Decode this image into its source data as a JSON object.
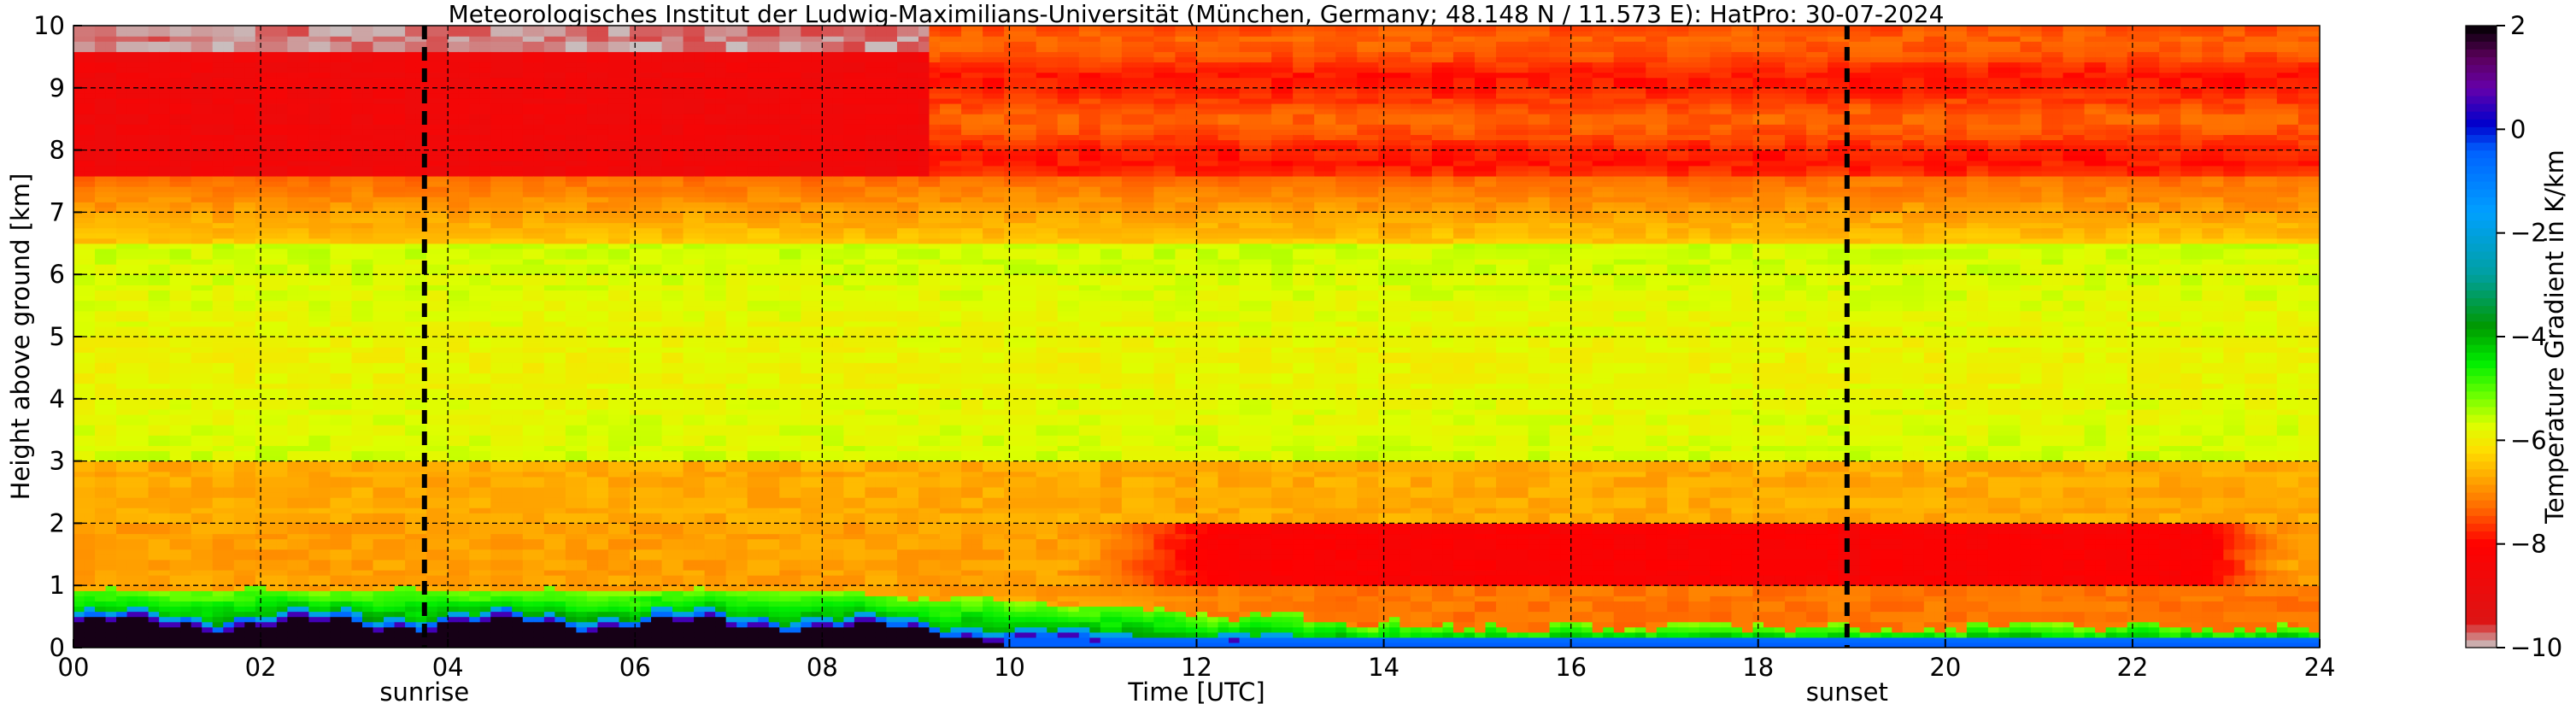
{
  "chart_data": {
    "type": "heatmap",
    "title": "Meteorologisches Institut der Ludwig-Maximilians-Universität (München, Germany; 48.148 N / 11.573 E):    HatPro: 30-07-2024",
    "xlabel": "Time [UTC]",
    "ylabel": "Height above ground [km]",
    "xlim": [
      0,
      24
    ],
    "ylim": [
      0,
      10
    ],
    "x_ticks": [
      0,
      2,
      4,
      6,
      8,
      10,
      12,
      14,
      16,
      18,
      20,
      22,
      24
    ],
    "x_tick_labels": [
      "00",
      "02",
      "04",
      "06",
      "08",
      "10",
      "12",
      "14",
      "16",
      "18",
      "20",
      "22",
      "24"
    ],
    "y_ticks": [
      0,
      1,
      2,
      3,
      4,
      5,
      6,
      7,
      8,
      9,
      10
    ],
    "y_tick_labels": [
      "0",
      "1",
      "2",
      "3",
      "4",
      "5",
      "6",
      "7",
      "8",
      "9",
      "10"
    ],
    "grid": true,
    "colorbar": {
      "label": "Temperature Gradient in K/km",
      "range": [
        -10,
        2
      ],
      "ticks": [
        2,
        0,
        -2,
        -4,
        -6,
        -8,
        -10
      ],
      "tick_labels": [
        "2",
        "0",
        "−2",
        "−4",
        "−6",
        "−8",
        "−10"
      ],
      "stops": [
        {
          "v": -10,
          "c": "#c8c8c8"
        },
        {
          "v": -9.5,
          "c": "#dc1414"
        },
        {
          "v": -8,
          "c": "#ff0000"
        },
        {
          "v": -7.3,
          "c": "#ff6a00"
        },
        {
          "v": -6.7,
          "c": "#ffaa00"
        },
        {
          "v": -6.2,
          "c": "#ffdd00"
        },
        {
          "v": -5.7,
          "c": "#ddff00"
        },
        {
          "v": -5.1,
          "c": "#66ff00"
        },
        {
          "v": -4.5,
          "c": "#00ee00"
        },
        {
          "v": -3.8,
          "c": "#009900"
        },
        {
          "v": -2.8,
          "c": "#00a0a0"
        },
        {
          "v": -1.6,
          "c": "#00a0ff"
        },
        {
          "v": -0.4,
          "c": "#0060ff"
        },
        {
          "v": 0.1,
          "c": "#0000cc"
        },
        {
          "v": 0.8,
          "c": "#6600aa"
        },
        {
          "v": 1.4,
          "c": "#5a005a"
        },
        {
          "v": 2,
          "c": "#000000"
        }
      ]
    },
    "vertical_markers": [
      {
        "label": "sunrise",
        "x": 3.75
      },
      {
        "label": "sunset",
        "x": 18.95
      }
    ],
    "field_summary": [
      {
        "time_range": [
          0,
          9
        ],
        "height_range_km": [
          9.6,
          10
        ],
        "value_K_per_km": -9.8
      },
      {
        "time_range": [
          0,
          9
        ],
        "height_range_km": [
          7.6,
          9.6
        ],
        "value_K_per_km": -8.6
      },
      {
        "time_range": [
          9,
          24
        ],
        "height_range_km": [
          7.6,
          10
        ],
        "value_K_per_km": -7.7
      },
      {
        "time_range": [
          0,
          24
        ],
        "height_range_km": [
          6.5,
          7.6
        ],
        "value_K_per_km": -6.9
      },
      {
        "time_range": [
          0,
          24
        ],
        "height_range_km": [
          3.0,
          6.5
        ],
        "value_K_per_km": -5.8
      },
      {
        "time_range": [
          0,
          24
        ],
        "height_range_km": [
          2.0,
          3.0
        ],
        "value_K_per_km": -6.6
      },
      {
        "time_range": [
          11,
          22.5
        ],
        "height_range_km": [
          1.0,
          2.0
        ],
        "value_K_per_km": -8.1
      },
      {
        "time_range": [
          0,
          8
        ],
        "height_range_km": [
          0.4,
          0.9
        ],
        "value_K_per_km": -4.2
      },
      {
        "time_range": [
          0,
          8
        ],
        "height_range_km": [
          0,
          0.4
        ],
        "value_K_per_km": 1.8
      },
      {
        "time_range": [
          12,
          24
        ],
        "height_range_km": [
          0,
          0.15
        ],
        "value_K_per_km": -0.5
      }
    ]
  }
}
